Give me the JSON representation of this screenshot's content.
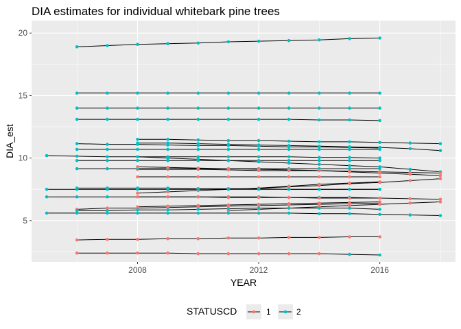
{
  "chart_data": {
    "type": "line",
    "title": "DIA estimates for individual whitebark pine trees",
    "xlabel": "YEAR",
    "ylabel": "DIA_est",
    "xlim": [
      2004.5,
      2018.5
    ],
    "ylim": [
      1.7,
      21.0
    ],
    "xticks": [
      2008,
      2012,
      2016
    ],
    "yticks": [
      5,
      10,
      15,
      20
    ],
    "x_tick_labels": [
      "2008",
      "2012",
      "2016"
    ],
    "y_tick_labels": [
      "5",
      "10",
      "15",
      "20"
    ],
    "grid": true,
    "legend_position": "bottom",
    "legend_title": "STATUSCD",
    "legend": [
      {
        "label": "1",
        "color": "#f8766d"
      },
      {
        "label": "2",
        "color": "#00bfc4"
      }
    ],
    "status_colors": {
      "1": "#f8766d",
      "2": "#00bfc4"
    },
    "line_color": "#000000",
    "panel_background": "#ebebeb",
    "grid_color": "#ffffff",
    "trees": [
      {
        "status": 2,
        "x": [
          2006,
          2007,
          2008,
          2009,
          2010,
          2011,
          2012,
          2013,
          2014,
          2015,
          2016
        ],
        "y": [
          18.9,
          19.0,
          19.1,
          19.15,
          19.2,
          19.3,
          19.35,
          19.4,
          19.45,
          19.55,
          19.6
        ]
      },
      {
        "status": 2,
        "x": [
          2006,
          2007,
          2008,
          2009,
          2010,
          2011,
          2012,
          2013,
          2014,
          2015,
          2016
        ],
        "y": [
          15.2,
          15.2,
          15.2,
          15.2,
          15.2,
          15.2,
          15.2,
          15.2,
          15.2,
          15.2,
          15.2
        ]
      },
      {
        "status": 2,
        "x": [
          2006,
          2007,
          2008,
          2009,
          2010,
          2011,
          2012,
          2013,
          2014,
          2015,
          2016
        ],
        "y": [
          14.0,
          14.0,
          14.0,
          14.0,
          14.0,
          14.0,
          14.0,
          14.0,
          14.0,
          14.0,
          14.0
        ]
      },
      {
        "status": 2,
        "x": [
          2006,
          2007,
          2008,
          2009,
          2010,
          2011,
          2012,
          2013,
          2014,
          2015,
          2016
        ],
        "y": [
          13.1,
          13.1,
          13.1,
          13.1,
          13.1,
          13.1,
          13.1,
          13.1,
          13.05,
          13.05,
          13.0
        ]
      },
      {
        "status": 2,
        "x": [
          2008,
          2009,
          2010,
          2011,
          2012,
          2013,
          2014,
          2015,
          2016,
          2017,
          2018
        ],
        "y": [
          11.5,
          11.5,
          11.45,
          11.4,
          11.4,
          11.35,
          11.3,
          11.3,
          11.25,
          11.2,
          11.15
        ]
      },
      {
        "status": 2,
        "x": [
          2006,
          2007,
          2008,
          2009,
          2010,
          2011,
          2012,
          2013,
          2014,
          2015,
          2016
        ],
        "y": [
          11.15,
          11.1,
          11.1,
          11.05,
          11.0,
          11.0,
          10.95,
          10.9,
          10.9,
          10.85,
          10.8
        ]
      },
      {
        "status": 2,
        "x": [
          2008,
          2009,
          2010,
          2011,
          2012,
          2013,
          2014,
          2015,
          2016,
          2017,
          2018
        ],
        "y": [
          11.2,
          11.2,
          11.15,
          11.1,
          11.05,
          11.0,
          10.95,
          10.9,
          10.85,
          10.75,
          10.6
        ]
      },
      {
        "status": 2,
        "x": [
          2006,
          2007,
          2008,
          2009,
          2010,
          2011,
          2012,
          2013,
          2014,
          2015,
          2016
        ],
        "y": [
          10.7,
          10.7,
          10.7,
          10.7,
          10.7,
          10.7,
          10.7,
          10.7,
          10.7,
          10.7,
          10.7
        ]
      },
      {
        "status": 2,
        "x": [
          2005,
          2006,
          2007,
          2008,
          2009,
          2010,
          2011,
          2012,
          2013,
          2014,
          2015,
          2016
        ],
        "y": [
          10.2,
          10.15,
          10.1,
          10.1,
          10.1,
          10.1,
          10.1,
          10.1,
          10.1,
          10.05,
          10.05,
          10.0
        ]
      },
      {
        "status": 2,
        "x": [
          2006,
          2007,
          2008,
          2009,
          2010,
          2011,
          2012,
          2013,
          2014,
          2015,
          2016
        ],
        "y": [
          9.8,
          9.8,
          9.8,
          9.8,
          9.8,
          9.8,
          9.8,
          9.8,
          9.8,
          9.8,
          9.8
        ]
      },
      {
        "status": 2,
        "x": [
          2008,
          2009,
          2010,
          2011,
          2012,
          2013,
          2014,
          2015,
          2016,
          2017,
          2018
        ],
        "y": [
          10.1,
          10.0,
          9.9,
          9.8,
          9.7,
          9.6,
          9.5,
          9.4,
          9.3,
          9.1,
          8.9
        ]
      },
      {
        "status": 1,
        "x": [
          2008,
          2009,
          2010,
          2011,
          2012,
          2013,
          2014,
          2015,
          2016,
          2017,
          2018
        ],
        "y": [
          9.1,
          9.1,
          9.1,
          9.05,
          9.0,
          9.0,
          9.0,
          8.95,
          8.9,
          8.85,
          8.8
        ]
      },
      {
        "status": 2,
        "x": [
          2006,
          2007,
          2008,
          2009,
          2010,
          2011,
          2012,
          2013,
          2014,
          2015,
          2016
        ],
        "y": [
          9.15,
          9.15,
          9.15,
          9.15,
          9.15,
          9.15,
          9.15,
          9.15,
          9.15,
          9.15,
          9.15
        ]
      },
      {
        "status": 1,
        "x": [
          2008,
          2009,
          2010,
          2011,
          2012,
          2013,
          2014,
          2015,
          2016,
          2017,
          2018
        ],
        "y": [
          9.3,
          9.25,
          9.2,
          9.15,
          9.1,
          9.05,
          9.0,
          8.9,
          8.8,
          8.7,
          8.6
        ]
      },
      {
        "status": 1,
        "x": [
          2008,
          2009,
          2010,
          2011,
          2012,
          2013,
          2014,
          2015,
          2016
        ],
        "y": [
          8.5,
          8.5,
          8.5,
          8.5,
          8.5,
          8.5,
          8.5,
          8.5,
          8.5
        ]
      },
      {
        "status": 1,
        "x": [
          2008,
          2009,
          2010,
          2011,
          2012,
          2013,
          2014,
          2015,
          2016
        ],
        "y": [
          7.2,
          7.3,
          7.4,
          7.5,
          7.6,
          7.75,
          7.9,
          8.0,
          8.1
        ]
      },
      {
        "status": 1,
        "x": [
          2012,
          2013,
          2014,
          2015,
          2016,
          2017,
          2018
        ],
        "y": [
          7.6,
          7.7,
          7.8,
          7.95,
          8.05,
          8.2,
          8.35
        ]
      },
      {
        "status": 2,
        "x": [
          2005,
          2006,
          2007,
          2008,
          2009,
          2010,
          2011,
          2012,
          2013,
          2014,
          2015,
          2016
        ],
        "y": [
          7.5,
          7.5,
          7.5,
          7.5,
          7.5,
          7.5,
          7.5,
          7.5,
          7.5,
          7.5,
          7.5,
          7.5
        ]
      },
      {
        "status": 2,
        "x": [
          2006,
          2007,
          2008,
          2009,
          2010,
          2011,
          2012,
          2013,
          2014,
          2015,
          2016
        ],
        "y": [
          7.6,
          7.6,
          7.6,
          7.6,
          7.55,
          7.55,
          7.55,
          7.5,
          7.5,
          7.5,
          7.5
        ]
      },
      {
        "status": 2,
        "x": [
          2005,
          2006,
          2007,
          2008,
          2009,
          2010,
          2011,
          2012,
          2013,
          2014,
          2015,
          2016
        ],
        "y": [
          6.9,
          6.9,
          6.9,
          6.9,
          6.9,
          6.9,
          6.9,
          6.9,
          6.85,
          6.85,
          6.85,
          6.8
        ]
      },
      {
        "status": 1,
        "x": [
          2008,
          2009,
          2010,
          2011,
          2012,
          2013,
          2014,
          2015,
          2016,
          2017,
          2018
        ],
        "y": [
          6.9,
          6.9,
          6.9,
          6.85,
          6.85,
          6.85,
          6.8,
          6.8,
          6.8,
          6.75,
          6.7
        ]
      },
      {
        "status": 1,
        "x": [
          2006,
          2007,
          2008,
          2009,
          2010,
          2011,
          2012,
          2013,
          2014,
          2015,
          2016
        ],
        "y": [
          5.9,
          6.0,
          6.0,
          6.05,
          6.1,
          6.15,
          6.2,
          6.25,
          6.3,
          6.35,
          6.4
        ]
      },
      {
        "status": 1,
        "x": [
          2008,
          2009,
          2010,
          2011,
          2012,
          2013,
          2014,
          2015,
          2016
        ],
        "y": [
          6.1,
          6.15,
          6.2,
          6.25,
          6.3,
          6.35,
          6.4,
          6.45,
          6.5
        ]
      },
      {
        "status": 1,
        "x": [
          2011,
          2012,
          2013,
          2014,
          2015,
          2016,
          2017,
          2018
        ],
        "y": [
          5.8,
          5.9,
          6.0,
          6.1,
          6.2,
          6.3,
          6.4,
          6.5
        ]
      },
      {
        "status": 2,
        "x": [
          2006,
          2007,
          2008,
          2009,
          2010,
          2011,
          2012,
          2013,
          2014,
          2015,
          2016
        ],
        "y": [
          5.8,
          5.8,
          5.85,
          5.85,
          5.9,
          5.95,
          6.0,
          6.0,
          6.0,
          6.0,
          5.9
        ]
      },
      {
        "status": 2,
        "x": [
          2005,
          2006,
          2007,
          2008,
          2009,
          2010,
          2011,
          2012,
          2013,
          2014,
          2015,
          2016,
          2017,
          2018
        ],
        "y": [
          5.6,
          5.6,
          5.6,
          5.6,
          5.6,
          5.6,
          5.6,
          5.6,
          5.6,
          5.55,
          5.55,
          5.5,
          5.45,
          5.4
        ]
      },
      {
        "status": 1,
        "x": [
          2006,
          2007,
          2008,
          2009,
          2010,
          2011,
          2012,
          2013,
          2014,
          2015,
          2016
        ],
        "y": [
          3.45,
          3.5,
          3.5,
          3.55,
          3.55,
          3.6,
          3.6,
          3.65,
          3.65,
          3.7,
          3.7
        ]
      },
      {
        "status": 1,
        "x": [
          2006,
          2007,
          2008,
          2009,
          2010,
          2011,
          2012,
          2013,
          2014,
          2015
        ],
        "y": [
          2.4,
          2.4,
          2.4,
          2.4,
          2.35,
          2.35,
          2.35,
          2.35,
          2.35,
          2.3
        ]
      },
      {
        "status": 2,
        "x": [
          2015,
          2016
        ],
        "y": [
          2.3,
          2.25
        ]
      }
    ]
  }
}
